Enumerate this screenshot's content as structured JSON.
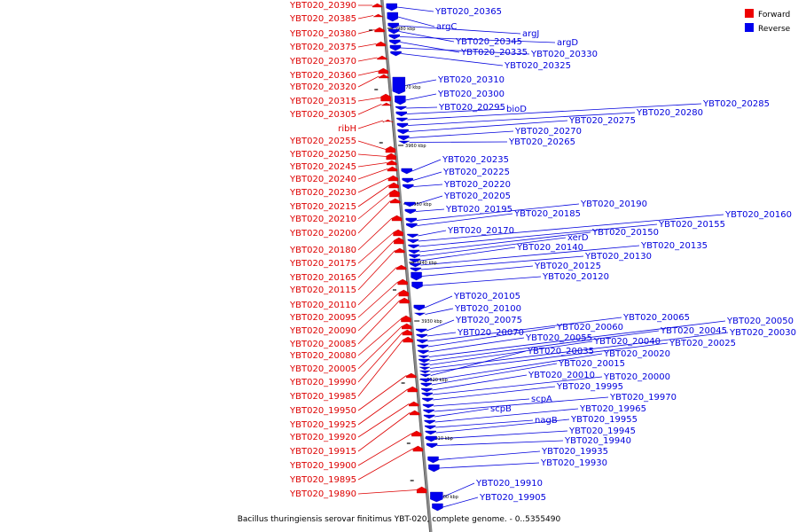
{
  "legend": [
    {
      "label": "Forward",
      "color": "#ee0000"
    },
    {
      "label": "Reverse",
      "color": "#0000ee"
    }
  ],
  "caption": "Bacillus thuringiensis serovar finitimus YBT-020, complete genome. - 0..5355490",
  "ticks": [
    "3980 kbp",
    "3970 kbp",
    "3960 kbp",
    "3950 kbp",
    "3940 kbp",
    "3930 kbp",
    "3920 kbp",
    "3910 kbp",
    "3900 kbp"
  ],
  "forward_genes": [
    "YBT020_20390",
    "YBT020_20385",
    "YBT020_20380",
    "YBT020_20375",
    "YBT020_20370",
    "YBT020_20360",
    "YBT020_20320",
    "YBT020_20315",
    "YBT020_20305",
    "ribH",
    "YBT020_20255",
    "YBT020_20250",
    "YBT020_20245",
    "YBT020_20240",
    "YBT020_20230",
    "YBT020_20215",
    "YBT020_20210",
    "YBT020_20200",
    "YBT020_20180",
    "YBT020_20175",
    "YBT020_20165",
    "YBT020_20115",
    "YBT020_20110",
    "YBT020_20095",
    "YBT020_20090",
    "YBT020_20085",
    "YBT020_20080",
    "YBT020_20005",
    "YBT020_19990",
    "YBT020_19985",
    "YBT020_19950",
    "YBT020_19925",
    "YBT020_19920",
    "YBT020_19915",
    "YBT020_19900",
    "YBT020_19895",
    "YBT020_19890"
  ],
  "reverse_genes": [
    "YBT020_20365",
    "argC",
    "argJ",
    "YBT020_20345",
    "argD",
    "YBT020_20335",
    "YBT020_20330",
    "YBT020_20325",
    "YBT020_20310",
    "YBT020_20300",
    "YBT020_20295",
    "bioD",
    "YBT020_20285",
    "YBT020_20280",
    "YBT020_20275",
    "YBT020_20270",
    "YBT020_20265",
    "YBT020_20235",
    "YBT020_20225",
    "YBT020_20220",
    "YBT020_20205",
    "YBT020_20195",
    "YBT020_20190",
    "YBT020_20185",
    "YBT020_20170",
    "YBT020_20160",
    "YBT020_20155",
    "YBT020_20150",
    "xerD",
    "YBT020_20140",
    "YBT020_20135",
    "YBT020_20130",
    "YBT020_20125",
    "YBT020_20120",
    "YBT020_20105",
    "YBT020_20100",
    "YBT020_20075",
    "YBT020_20070",
    "YBT020_20065",
    "YBT020_20060",
    "YBT020_20055",
    "YBT020_20050",
    "YBT020_20045",
    "YBT020_20040",
    "YBT020_20030",
    "YBT020_20025",
    "YBT020_20035",
    "YBT020_20020",
    "YBT020_20015",
    "YBT020_20010",
    "YBT020_20000",
    "YBT020_19995",
    "scpA",
    "YBT020_19970",
    "scpB",
    "YBT020_19965",
    "nagB",
    "YBT020_19955",
    "YBT020_19945",
    "YBT020_19940",
    "YBT020_19935",
    "YBT020_19930",
    "YBT020_19910",
    "YBT020_19905"
  ]
}
